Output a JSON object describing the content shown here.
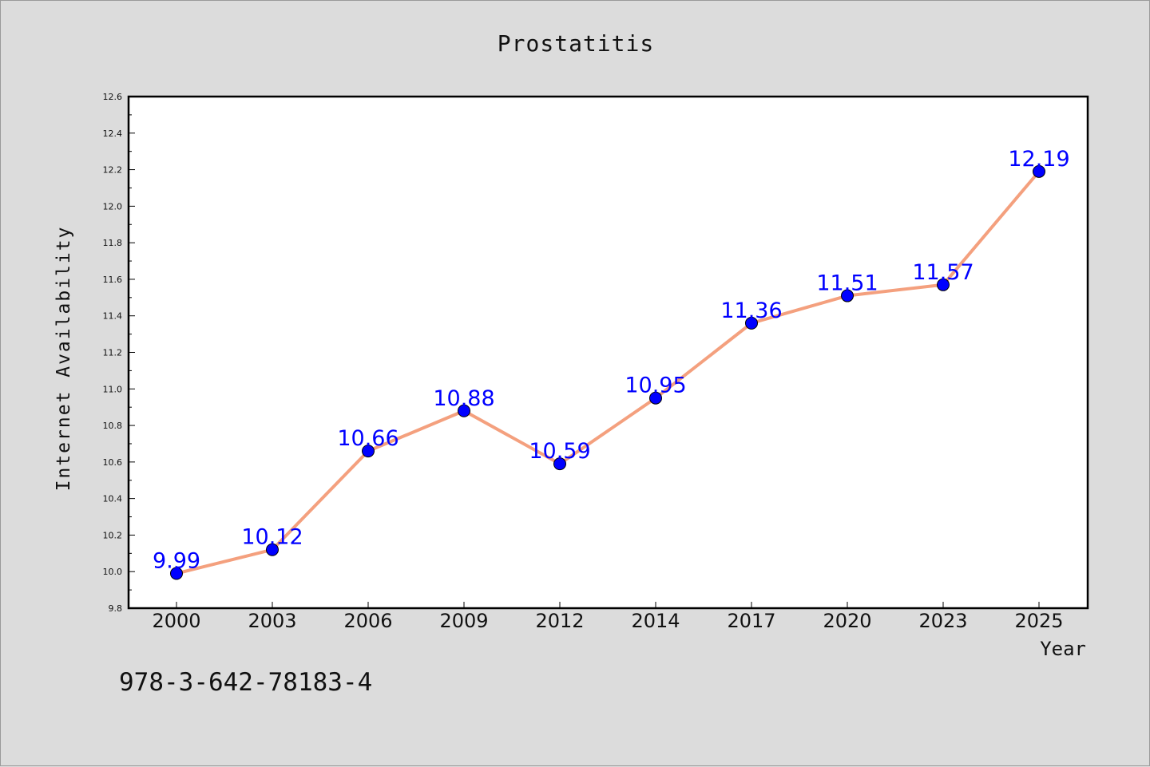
{
  "chart_data": {
    "type": "line",
    "title": "Prostatitis",
    "xlabel": "Year",
    "ylabel": "Internet Availability",
    "categories": [
      "2000",
      "2003",
      "2006",
      "2009",
      "2012",
      "2014",
      "2017",
      "2020",
      "2023",
      "2025"
    ],
    "series": [
      {
        "values": [
          9.99,
          10.12,
          10.66,
          10.88,
          10.59,
          10.95,
          11.36,
          11.51,
          11.57,
          12.19
        ],
        "data_labels": [
          "9.99",
          "10.12",
          "10.66",
          "10.88",
          "10.59",
          "10.95",
          "11.36",
          "11.51",
          "11.57",
          "12.19"
        ],
        "line_color": "#f4a07e",
        "marker_color": "#0000ff"
      }
    ],
    "ylim": [
      9.8,
      12.6
    ],
    "yticks": [
      "9.8",
      "10.0",
      "10.2",
      "10.4",
      "10.6",
      "10.8",
      "11.0",
      "11.2",
      "11.4",
      "11.6",
      "11.8",
      "12.0",
      "12.2",
      "12.4",
      "12.6"
    ],
    "grid": false,
    "legend": "none"
  },
  "footnote": "978-3-642-78183-4"
}
